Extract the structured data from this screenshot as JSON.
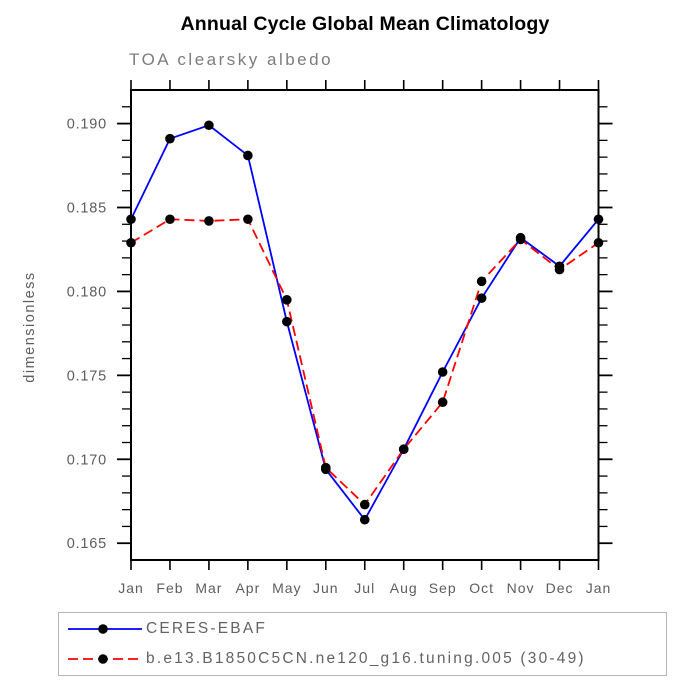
{
  "title": "Annual Cycle Global Mean Climatology",
  "subtitle": "TOA clearsky albedo",
  "colors": {
    "obs_line": "#0000ff",
    "model_line": "#ff0000",
    "marker": "#000000",
    "frame": "#000000",
    "tick_text": "#5d5d5d",
    "subtitle_text": "#7d7d7d",
    "legend_border": "#b5b5b5",
    "legend_text": "#636363"
  },
  "chart_data": {
    "type": "line",
    "title": "Annual Cycle Global Mean Climatology",
    "subtitle": "TOA clearsky albedo",
    "ylabel": "dimensionless",
    "xlabel": "",
    "grid": false,
    "legend_position": "bottom",
    "categories": [
      "Jan",
      "Feb",
      "Mar",
      "Apr",
      "May",
      "Jun",
      "Jul",
      "Aug",
      "Sep",
      "Oct",
      "Nov",
      "Dec",
      "Jan"
    ],
    "ylim": [
      0.164,
      0.192
    ],
    "yticks": [
      {
        "value": 0.165,
        "label": "0.165"
      },
      {
        "value": 0.17,
        "label": "0.170"
      },
      {
        "value": 0.175,
        "label": "0.175"
      },
      {
        "value": 0.18,
        "label": "0.180"
      },
      {
        "value": 0.185,
        "label": "0.185"
      },
      {
        "value": 0.19,
        "label": "0.190"
      }
    ],
    "ytick_minor_step": 0.001,
    "series": [
      {
        "name": "CERES-EBAF",
        "color": "#0000ff",
        "style": "solid",
        "marker": "dot",
        "values": [
          0.1843,
          0.1891,
          0.1899,
          0.1881,
          0.1782,
          0.1694,
          0.1664,
          0.1706,
          0.1752,
          0.1796,
          0.1832,
          0.1815,
          0.1843
        ]
      },
      {
        "name": "b.e13.B1850C5CN.ne120_g16.tuning.005 (30-49)",
        "color": "#ff0000",
        "style": "dashed",
        "marker": "dot",
        "values": [
          0.1829,
          0.1843,
          0.1842,
          0.1843,
          0.1795,
          0.1695,
          0.1673,
          0.1706,
          0.1734,
          0.1806,
          0.1831,
          0.1813,
          0.1829
        ]
      }
    ]
  }
}
